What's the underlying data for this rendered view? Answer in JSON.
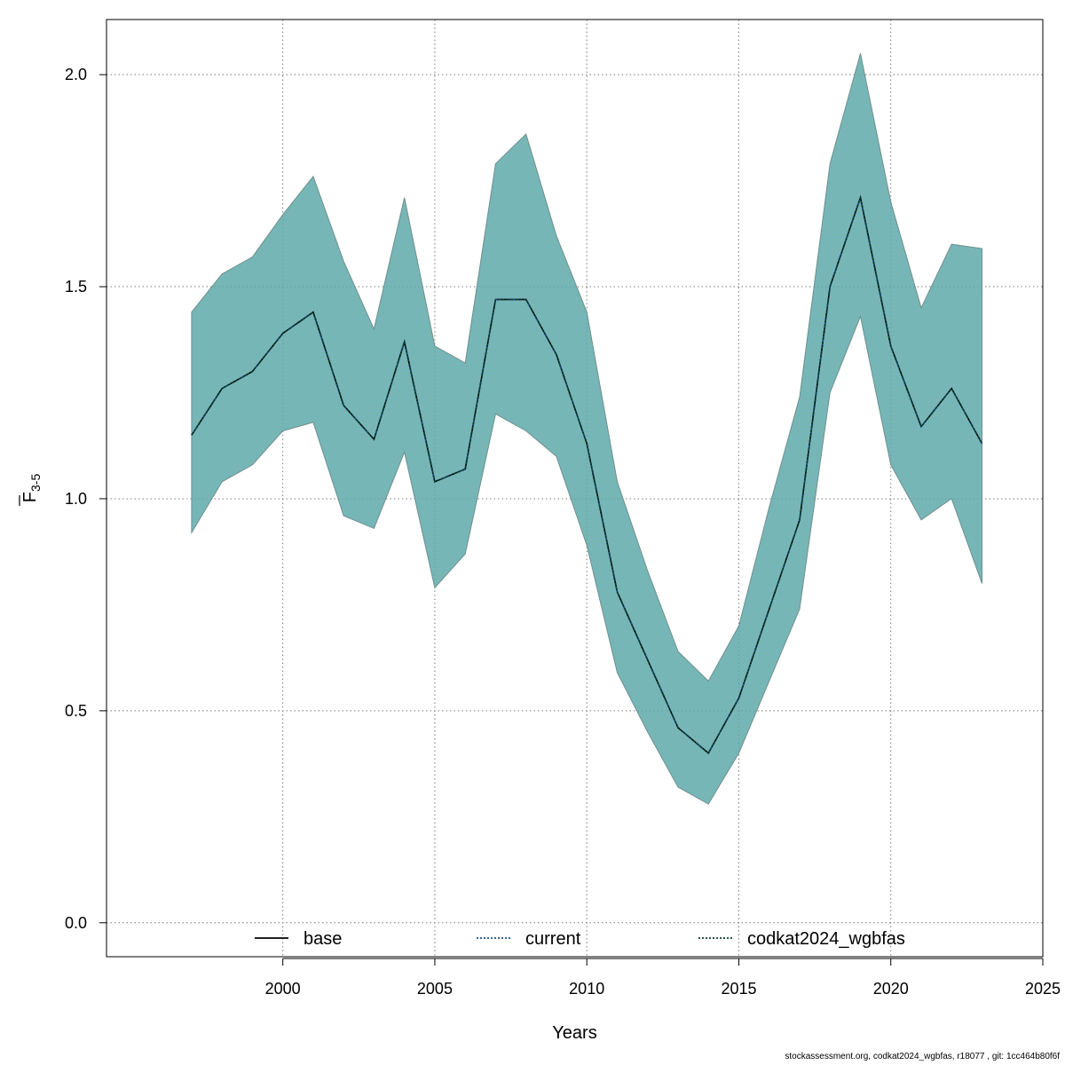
{
  "chart_data": {
    "type": "line",
    "xlabel": "Years",
    "ylabel": {
      "main": "F",
      "sub": "3-5"
    },
    "xlim": [
      1994.2,
      2025.0
    ],
    "ylim": [
      -0.08,
      2.13
    ],
    "x_ticks": [
      2000,
      2005,
      2010,
      2015,
      2020,
      2025
    ],
    "y_ticks": [
      0.0,
      0.5,
      1.0,
      1.5,
      2.0
    ],
    "y_tick_labels": [
      "0.0",
      "0.5",
      "1.0",
      "1.5",
      "2.0"
    ],
    "grid": true,
    "legend_position": "bottom",
    "x": [
      1997,
      1998,
      1999,
      2000,
      2001,
      2002,
      2003,
      2004,
      2005,
      2006,
      2007,
      2008,
      2009,
      2010,
      2011,
      2012,
      2013,
      2014,
      2015,
      2016,
      2017,
      2018,
      2019,
      2020,
      2021,
      2022,
      2023
    ],
    "series": [
      {
        "name": "base",
        "line_style": "solid",
        "color": "#000000",
        "values": [
          1.15,
          1.26,
          1.3,
          1.39,
          1.44,
          1.22,
          1.14,
          1.37,
          1.04,
          1.07,
          1.47,
          1.47,
          1.34,
          1.13,
          0.78,
          0.62,
          0.46,
          0.4,
          0.53,
          0.74,
          0.95,
          1.5,
          1.71,
          1.36,
          1.17,
          1.26,
          1.13
        ]
      },
      {
        "name": "current",
        "line_style": "dotted",
        "color": "#1a4f8f",
        "values": [
          1.15,
          1.26,
          1.3,
          1.39,
          1.44,
          1.22,
          1.14,
          1.37,
          1.04,
          1.07,
          1.47,
          1.47,
          1.34,
          1.13,
          0.78,
          0.62,
          0.46,
          0.4,
          0.53,
          0.74,
          0.95,
          1.5,
          1.71,
          1.36,
          1.17,
          1.26,
          1.13
        ]
      },
      {
        "name": "codkat2024_wgbfas",
        "line_style": "dotted",
        "color": "#0b3a2e",
        "values": [
          1.15,
          1.26,
          1.3,
          1.39,
          1.44,
          1.22,
          1.14,
          1.37,
          1.04,
          1.07,
          1.47,
          1.47,
          1.34,
          1.13,
          0.78,
          0.62,
          0.46,
          0.4,
          0.53,
          0.74,
          0.95,
          1.5,
          1.71,
          1.36,
          1.17,
          1.26,
          1.13
        ]
      }
    ],
    "confidence_band": {
      "color": "#5fa9a9",
      "lower": [
        0.92,
        1.04,
        1.08,
        1.16,
        1.18,
        0.96,
        0.93,
        1.11,
        0.79,
        0.87,
        1.2,
        1.16,
        1.1,
        0.89,
        0.59,
        0.45,
        0.32,
        0.28,
        0.4,
        0.57,
        0.74,
        1.25,
        1.43,
        1.08,
        0.95,
        1.0,
        0.8
      ],
      "upper": [
        1.44,
        1.53,
        1.57,
        1.67,
        1.76,
        1.56,
        1.4,
        1.71,
        1.36,
        1.32,
        1.79,
        1.86,
        1.62,
        1.44,
        1.04,
        0.83,
        0.64,
        0.57,
        0.7,
        0.98,
        1.24,
        1.79,
        2.05,
        1.7,
        1.45,
        1.6,
        1.59
      ]
    }
  },
  "footer": "stockassessment.org, codkat2024_wgbfas, r18077 , git: 1cc464b80f6f"
}
